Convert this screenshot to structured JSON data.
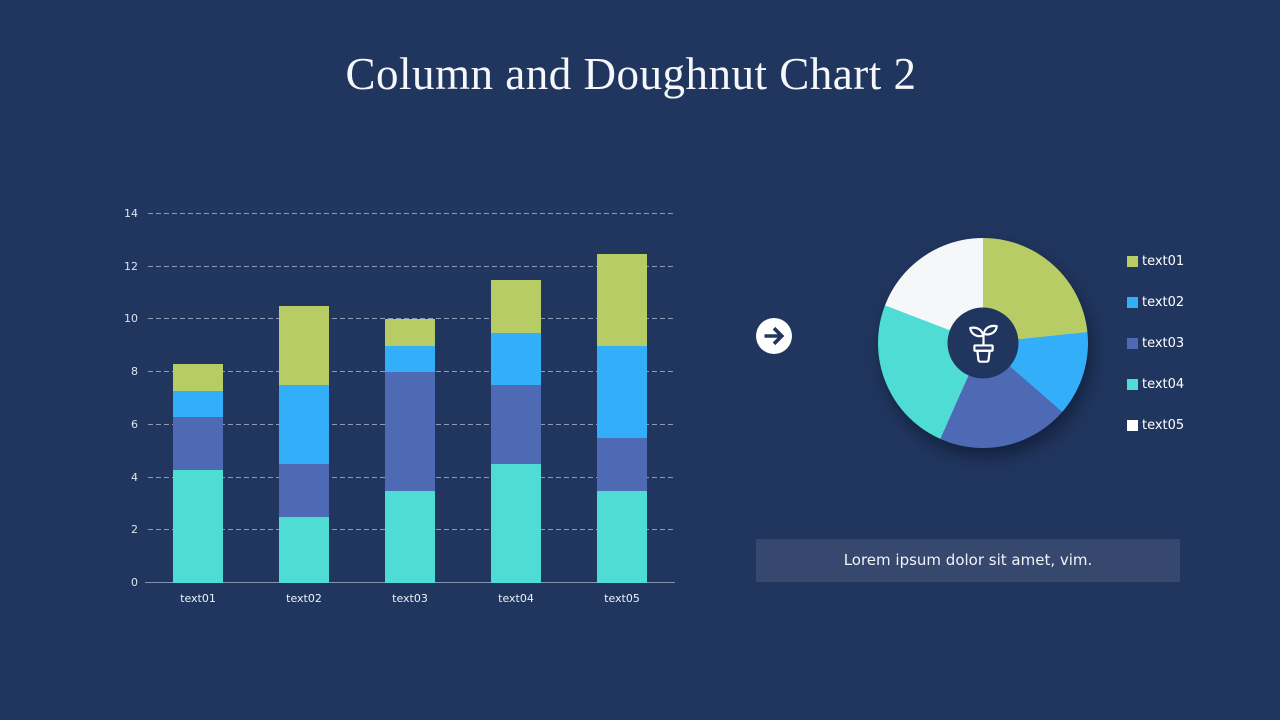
{
  "slide": {
    "title": "Column and Doughnut Chart 2",
    "caption": "Lorem ipsum dolor sit amet, vim.",
    "background": "#21365f"
  },
  "colors": {
    "text01": "#b8cc65",
    "text02": "#33affa",
    "text03": "#4f6ab4",
    "text04": "#4edcd4",
    "text05": "#f6f7f9",
    "caption_box": "#37486e",
    "legend_text": "#ffffff",
    "title_text": "#f5f7fa",
    "arrow_badge": "#ffffff"
  },
  "chart_data": [
    {
      "type": "bar",
      "stacked": true,
      "title": "",
      "xlabel": "",
      "ylabel": "",
      "categories": [
        "text01",
        "text02",
        "text03",
        "text04",
        "text05"
      ],
      "series": [
        {
          "name": "text04",
          "color": "#4edcd4",
          "values": [
            4.3,
            2.5,
            3.5,
            4.5,
            3.5
          ]
        },
        {
          "name": "text03",
          "color": "#4f6ab4",
          "values": [
            2,
            2,
            4.5,
            3,
            2
          ]
        },
        {
          "name": "text02",
          "color": "#33affa",
          "values": [
            1,
            3,
            1,
            2,
            3.5
          ]
        },
        {
          "name": "text01",
          "color": "#b8cc65",
          "values": [
            1,
            3,
            1,
            2,
            3.5
          ]
        }
      ],
      "series_order_note": "listed bottom-to-top of each stacked column",
      "stack_totals": [
        8.3,
        10.5,
        10,
        11.5,
        12.5
      ],
      "ylim": [
        0,
        14
      ],
      "yticks": [
        0,
        2,
        4,
        6,
        8,
        10,
        12,
        14
      ],
      "grid": "dashed horizontal gridlines, solid baseline, no vertical axis line",
      "legend_position": "none"
    },
    {
      "type": "pie",
      "subtype": "doughnut",
      "labels": [
        "text01",
        "text02",
        "text03",
        "text04",
        "text05"
      ],
      "values_deg": [
        84,
        47,
        73,
        87,
        69
      ],
      "values_pct": [
        23.3,
        13.1,
        20.3,
        24.2,
        19.1
      ],
      "colors": [
        "#b8cc65",
        "#33affa",
        "#4f6ab4",
        "#4edcd4",
        "#f6f7f9"
      ],
      "start_angle_deg": 0,
      "direction": "clockwise from 12 o'clock",
      "center_icon": "plant-pot",
      "legend_position": "right"
    }
  ],
  "legend": {
    "items": [
      {
        "label": "text01",
        "color": "#b8cc65"
      },
      {
        "label": "text02",
        "color": "#33affa"
      },
      {
        "label": "text03",
        "color": "#4f6ab4"
      },
      {
        "label": "text04",
        "color": "#4edcd4"
      },
      {
        "label": "text05",
        "color": "#ffffff"
      }
    ]
  }
}
